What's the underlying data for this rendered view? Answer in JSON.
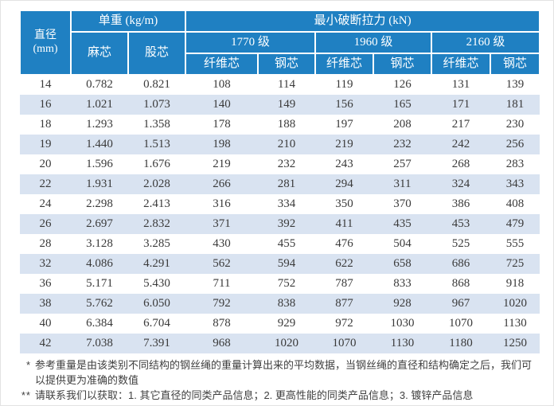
{
  "colors": {
    "header_blue": "#1f80c2",
    "stripe_blue": "#d9e3f1",
    "header_text": "#ffffff",
    "body_text": "#3a3a3a"
  },
  "table": {
    "header": {
      "diameter_line1": "直径",
      "diameter_line2": "(mm)",
      "unit_weight": "单重 (kg/m)",
      "breaking_force": "最小破断拉力 (kN)",
      "sub_weight": [
        "麻芯",
        "股芯"
      ],
      "grades": [
        "1770 级",
        "1960 级",
        "2160 级"
      ],
      "core_types": [
        "纤维芯",
        "钢芯",
        "纤维芯",
        "钢芯",
        "纤维芯",
        "钢芯"
      ]
    },
    "rows": [
      [
        "14",
        "0.782",
        "0.821",
        "108",
        "114",
        "119",
        "126",
        "131",
        "139"
      ],
      [
        "16",
        "1.021",
        "1.073",
        "140",
        "149",
        "156",
        "165",
        "171",
        "181"
      ],
      [
        "18",
        "1.293",
        "1.358",
        "178",
        "188",
        "197",
        "208",
        "217",
        "230"
      ],
      [
        "19",
        "1.440",
        "1.513",
        "198",
        "210",
        "219",
        "232",
        "242",
        "256"
      ],
      [
        "20",
        "1.596",
        "1.676",
        "219",
        "232",
        "243",
        "257",
        "268",
        "283"
      ],
      [
        "22",
        "1.931",
        "2.028",
        "266",
        "281",
        "294",
        "311",
        "324",
        "343"
      ],
      [
        "24",
        "2.298",
        "2.413",
        "316",
        "334",
        "350",
        "370",
        "386",
        "408"
      ],
      [
        "26",
        "2.697",
        "2.832",
        "371",
        "392",
        "411",
        "435",
        "453",
        "479"
      ],
      [
        "28",
        "3.128",
        "3.285",
        "430",
        "455",
        "476",
        "504",
        "525",
        "555"
      ],
      [
        "32",
        "4.086",
        "4.291",
        "562",
        "594",
        "622",
        "658",
        "686",
        "725"
      ],
      [
        "36",
        "5.171",
        "5.430",
        "711",
        "752",
        "787",
        "833",
        "868",
        "918"
      ],
      [
        "38",
        "5.762",
        "6.050",
        "792",
        "838",
        "877",
        "928",
        "967",
        "1020"
      ],
      [
        "40",
        "6.384",
        "6.704",
        "878",
        "929",
        "972",
        "1030",
        "1070",
        "1130"
      ],
      [
        "42",
        "7.038",
        "7.391",
        "968",
        "1020",
        "1070",
        "1130",
        "1180",
        "1250"
      ]
    ]
  },
  "footnotes": [
    {
      "marker": "*",
      "text": "参考重量是由该类别不同结构的钢丝绳的重量计算出来的平均数据，当钢丝绳的直径和结构确定之后，我们可以提供更为准确的数值"
    },
    {
      "marker": "**",
      "text": "请联系我们以获取：1. 其它直径的同类产品信息；2. 更高性能的同类产品信息；3. 镀锌产品信息"
    }
  ]
}
